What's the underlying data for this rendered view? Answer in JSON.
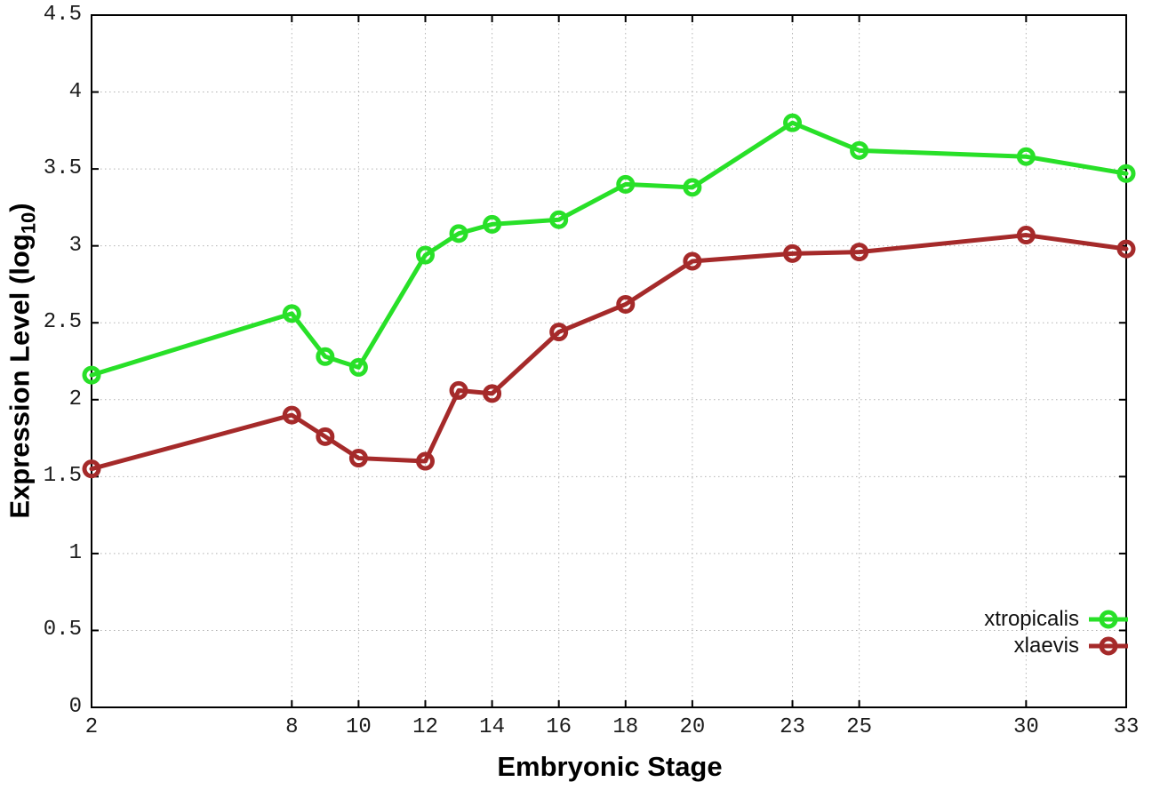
{
  "chart_data": {
    "type": "line",
    "title": "",
    "xlabel": "Embryonic Stage",
    "ylabel": {
      "pre": "Expression Level (log",
      "sub": "10",
      "post": ")"
    },
    "xlim": [
      2,
      33
    ],
    "ylim": [
      0,
      4.5
    ],
    "grid": "dotted",
    "grid_color": "#b3b3b3",
    "axis_color": "#000000",
    "background": "#ffffff",
    "legend_position": "inside right, below middle",
    "marker": "open-circle",
    "x": [
      2,
      8,
      9,
      10,
      12,
      13,
      14,
      16,
      18,
      20,
      23,
      25,
      30,
      33
    ],
    "xticks": [
      2,
      8,
      10,
      12,
      14,
      16,
      18,
      20,
      23,
      25,
      30,
      33
    ],
    "yticks": [
      0,
      0.5,
      1,
      1.5,
      2,
      2.5,
      3,
      3.5,
      4,
      4.5
    ],
    "series": [
      {
        "name": "xtropicalis",
        "color": "#28e028",
        "values": [
          2.16,
          2.56,
          2.28,
          2.21,
          2.94,
          3.08,
          3.14,
          3.17,
          3.4,
          3.38,
          3.8,
          3.62,
          3.58,
          3.47
        ]
      },
      {
        "name": "xlaevis",
        "color": "#a52a2a",
        "values": [
          1.55,
          1.9,
          1.76,
          1.62,
          1.6,
          2.06,
          2.04,
          2.44,
          2.62,
          2.9,
          2.95,
          2.96,
          3.07,
          2.98
        ]
      }
    ]
  }
}
